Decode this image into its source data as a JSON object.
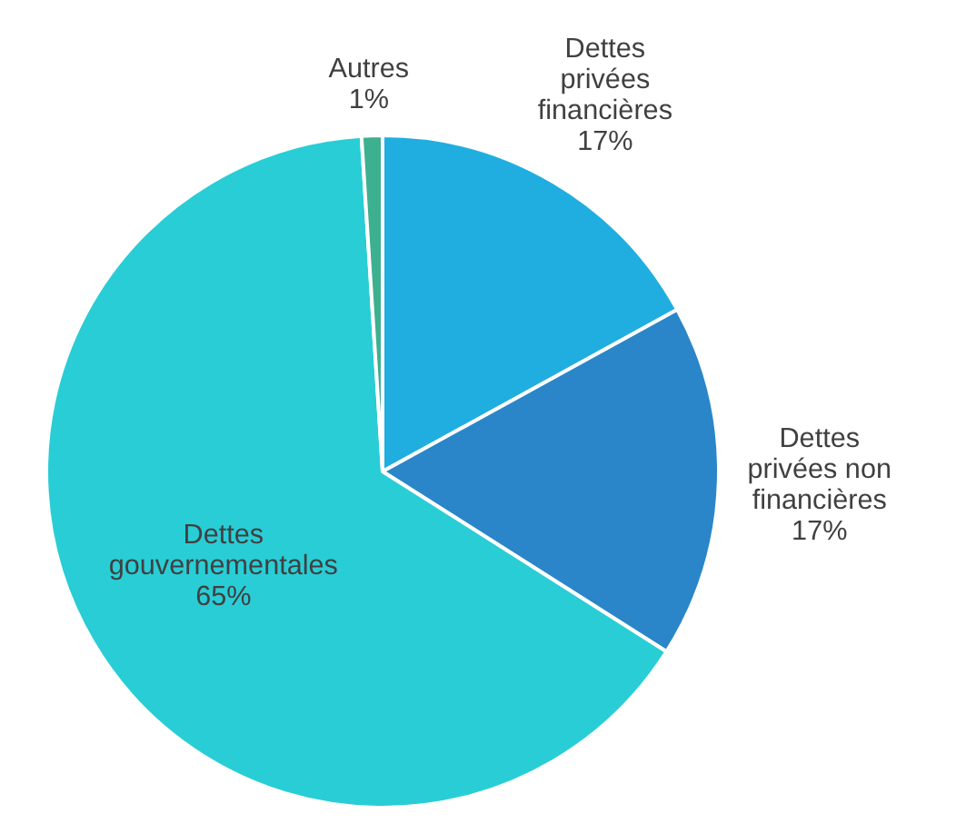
{
  "chart_data": {
    "type": "pie",
    "categories": [
      "Dettes privées financières",
      "Dettes privées non financières",
      "Dettes gouvernementales",
      "Autres"
    ],
    "values": [
      17,
      17,
      65,
      1
    ],
    "colors": [
      "#20aee0",
      "#2a86c8",
      "#29cdd6",
      "#3db08f"
    ],
    "value_labels": [
      "17%",
      "17%",
      "65%",
      "1%"
    ]
  }
}
